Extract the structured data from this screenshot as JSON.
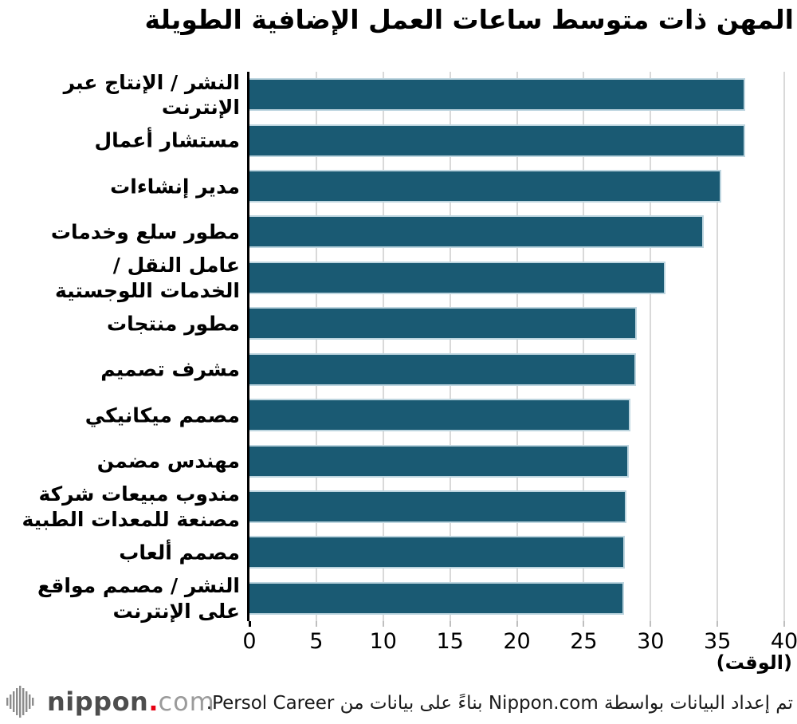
{
  "title": "المهن ذات متوسط ساعات العمل الإضافية الطويلة",
  "chart_data": {
    "type": "bar",
    "orientation": "horizontal",
    "title": "المهن ذات متوسط ساعات العمل الإضافية الطويلة",
    "categories": [
      "النشر / الإنتاج عبر الإنترنت",
      "مستشار أعمال",
      "مدير إنشاءات",
      "مطور سلع وخدمات",
      "عامل النقل /\nالخدمات اللوجستية",
      "مطور منتجات",
      "مشرف تصميم",
      "مصمم ميكانيكي",
      "مهندس مضمن",
      "مندوب مبيعات شركة\nمصنعة للمعدات الطبية",
      "مصمم ألعاب",
      "النشر / مصمم مواقع\nعلى الإنترنت"
    ],
    "values": [
      37.1,
      37.1,
      35.3,
      34.0,
      31.1,
      29.0,
      28.9,
      28.5,
      28.4,
      28.2,
      28.1,
      28.0
    ],
    "xlabel": "(الوقت)",
    "xlim": [
      0,
      40
    ],
    "xticks": [
      0,
      5,
      10,
      15,
      20,
      25,
      30,
      35,
      40
    ],
    "grid": true,
    "legend": "none",
    "bar_color": "#1a5a73",
    "bar_edge_color": "#bdd5df",
    "gridline_color": "#d9d9d9"
  },
  "footer": {
    "credit": "تم إعداد البيانات بواسطة Nippon.com بناءً على بيانات من Persol Career.",
    "logo": {
      "nippon": "nippon",
      "dot": ".",
      "com": "com",
      "icon": "soundwave-icon",
      "dot_color": "#e60012"
    }
  }
}
